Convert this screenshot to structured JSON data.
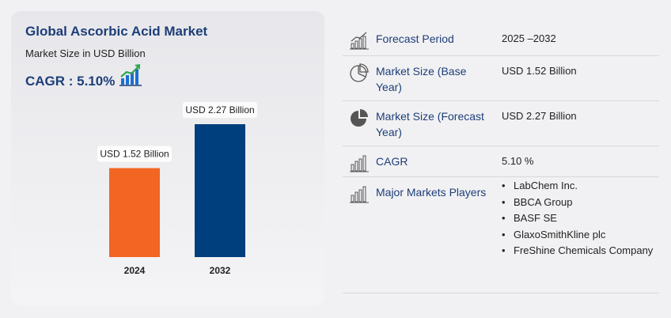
{
  "left_panel": {
    "title": "Global Ascorbic Acid Market",
    "subtitle": "Market Size in USD Billion",
    "cagr_label": "CAGR : 5.10%",
    "cagr_icon": "growth-chart-icon"
  },
  "chart_data": {
    "type": "bar",
    "title": "Global Ascorbic Acid Market",
    "ylabel": "Market Size in USD Billion",
    "categories": [
      "2024",
      "2032"
    ],
    "values": [
      1.52,
      2.27
    ],
    "data_labels": [
      "USD 1.52 Billion",
      "USD 2.27 Billion"
    ],
    "colors": [
      "#f26522",
      "#003f7d"
    ],
    "ylim": [
      0,
      2.27
    ],
    "grid": false,
    "legend": "none"
  },
  "details": {
    "rows": [
      {
        "icon": "growth-chart-icon",
        "label": "Forecast Period",
        "value": "2025 –2032"
      },
      {
        "icon": "pie-chart-outline-icon",
        "label": "Market Size (Base Year)",
        "value": "USD 1.52 Billion"
      },
      {
        "icon": "pie-chart-filled-icon",
        "label": "Market Size (Forecast Year)",
        "value": "USD 2.27 Billion"
      },
      {
        "icon": "bar-chart-icon",
        "label": "CAGR",
        "value": "5.10 %"
      }
    ],
    "players": {
      "icon": "bar-chart-icon",
      "label": "Major Markets Players",
      "items": [
        "LabChem Inc.",
        "BBCA Group",
        "BASF SE",
        "GlaxoSmithKline plc",
        "FreShine Chemicals Company"
      ]
    }
  }
}
